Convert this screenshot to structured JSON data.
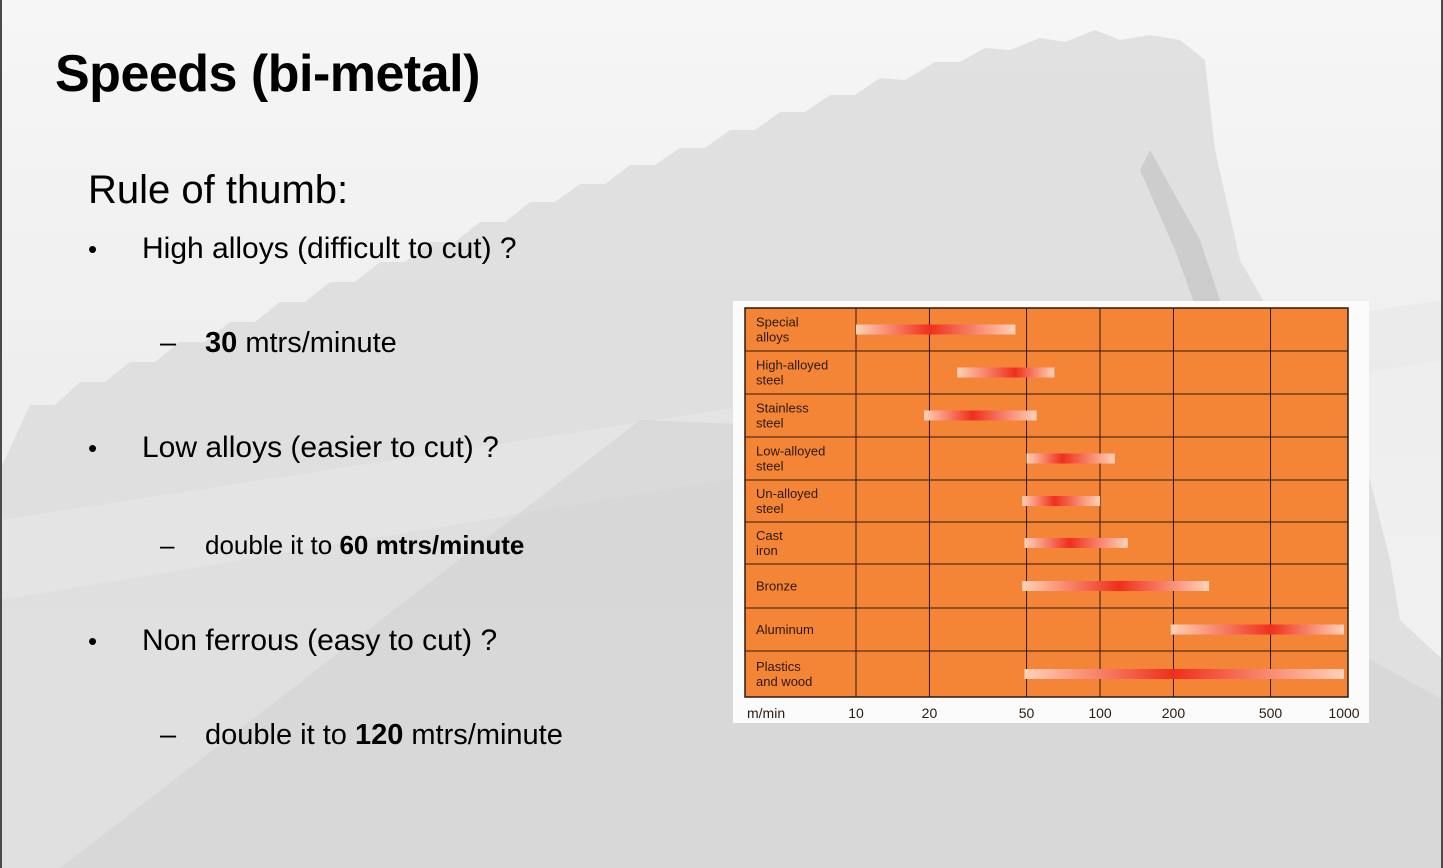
{
  "slide": {
    "title": "Speeds (bi-metal)",
    "subhead": "Rule of thumb:",
    "bullets": [
      {
        "marker": "•",
        "text": "High alloys (difficult to cut) ?",
        "sub": {
          "marker": "–",
          "pre": "",
          "bold": "30",
          "post": " mtrs/minute"
        }
      },
      {
        "marker": "•",
        "text": "Low alloys (easier to cut) ?",
        "sub": {
          "marker": "–",
          "pre": "double it to ",
          "bold": "60 mtrs/minute",
          "post": ""
        }
      },
      {
        "marker": "•",
        "text": "Non ferrous (easy to cut) ?",
        "sub": {
          "marker": "–",
          "pre": "double it to ",
          "bold": "120",
          "post": " mtrs/minute"
        }
      }
    ]
  },
  "chart_data": {
    "type": "bar",
    "orientation": "horizontal-range",
    "x_scale": "log",
    "xlabel": "m/min",
    "x_ticks": [
      10,
      20,
      50,
      100,
      200,
      500,
      1000
    ],
    "xlim": [
      10,
      1000
    ],
    "grid": true,
    "colors": {
      "background": "#f58536",
      "bar": "#ef2f1c",
      "grid": "#2b1a10",
      "plot_bg": "#fbfbfb"
    },
    "categories": [
      {
        "label_lines": [
          "Special",
          "alloys"
        ],
        "range": [
          10,
          45
        ],
        "peak": 20
      },
      {
        "label_lines": [
          "High-alloyed",
          "steel"
        ],
        "range": [
          26,
          65
        ],
        "peak": 45
      },
      {
        "label_lines": [
          "Stainless",
          "steel"
        ],
        "range": [
          19,
          55
        ],
        "peak": 30
      },
      {
        "label_lines": [
          "Low-alloyed",
          "steel"
        ],
        "range": [
          50,
          115
        ],
        "peak": 70
      },
      {
        "label_lines": [
          "Un-alloyed",
          "steel"
        ],
        "range": [
          48,
          100
        ],
        "peak": 65
      },
      {
        "label_lines": [
          "Cast",
          "iron"
        ],
        "range": [
          49,
          130
        ],
        "peak": 75
      },
      {
        "label_lines": [
          "Bronze"
        ],
        "range": [
          48,
          280
        ],
        "peak": 120
      },
      {
        "label_lines": [
          "Aluminum"
        ],
        "range": [
          195,
          1000
        ],
        "peak": 500
      },
      {
        "label_lines": [
          "Plastics",
          "and wood"
        ],
        "range": [
          49,
          1000
        ],
        "peak": 200
      }
    ]
  }
}
